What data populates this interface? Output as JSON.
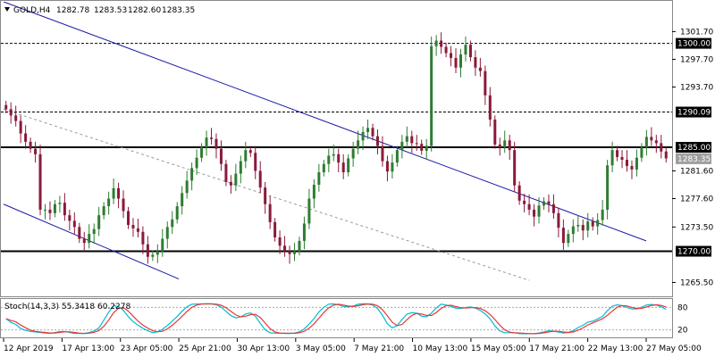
{
  "header": {
    "menu_icon": "triangle-down-icon",
    "symbol": "GOLD,H4",
    "ohlc": [
      "1282.78",
      "1283.53",
      "1282.60",
      "1283.35"
    ]
  },
  "oscillator": {
    "label": "Stoch(14,3,3) 55.3418 60.2278",
    "levels": [
      80,
      20
    ],
    "level_labels": [
      "80",
      "20"
    ],
    "main_color": "#00bcd4",
    "signal_color": "#e53935"
  },
  "colors": {
    "bull_candle": "#2e7d32",
    "bear_candle": "#8b1a3a",
    "trendline": "#1a1aa8",
    "price_tag_bg": "#000000",
    "price_tag_text": "#ffffff"
  },
  "chart_data": {
    "type": "candlestick",
    "y_axis_ticks": [
      1301.7,
      1297.7,
      1293.7,
      1281.6,
      1277.6,
      1273.5,
      1265.5
    ],
    "y_axis_labels": [
      "1301.70",
      "1297.70",
      "1293.70",
      "1281.60",
      "1277.60",
      "1273.50",
      "1265.50"
    ],
    "ylim": [
      1263.5,
      1306.0
    ],
    "x_axis_labels": [
      "12 Apr 2019",
      "17 Apr 13:00",
      "23 Apr 05:00",
      "25 Apr 21:00",
      "30 Apr 13:00",
      "3 May 05:00",
      "7 May 21:00",
      "10 May 13:00",
      "15 May 05:00",
      "17 May 21:00",
      "22 May 13:00",
      "27 May 05:00"
    ],
    "horizontal_levels": [
      {
        "value": 1300.0,
        "label": "1300.00",
        "style": "dashed"
      },
      {
        "value": 1290.09,
        "label": "1290.09",
        "style": "dashed"
      },
      {
        "value": 1285.0,
        "label": "1285.00",
        "style": "solid"
      },
      {
        "value": 1270.0,
        "label": "1270.00",
        "style": "solid"
      }
    ],
    "current_price": {
      "value": 1283.35,
      "label": "1283.35"
    },
    "trendlines": [
      {
        "from": [
          "12 Apr 2019",
          1306.0
        ],
        "to": [
          "27 May 05:00",
          1271.5
        ],
        "style": "solid"
      },
      {
        "from": [
          "12 Apr 2019",
          1276.8
        ],
        "to": [
          "25 Apr 21:00",
          1266.0
        ],
        "style": "solid"
      },
      {
        "from": [
          "12 Apr 2019",
          1290.5
        ],
        "to": [
          "17 May 21:00",
          1265.8
        ],
        "style": "dashed"
      }
    ],
    "close_path": [
      1290.5,
      1289.6,
      1288.8,
      1287.0,
      1285.8,
      1284.8,
      1284.0,
      1276.0,
      1276.0,
      1275.5,
      1276.8,
      1277.0,
      1275.2,
      1274.4,
      1273.5,
      1271.8,
      1271.2,
      1272.5,
      1273.2,
      1275.2,
      1276.5,
      1277.6,
      1279.1,
      1277.6,
      1275.8,
      1273.8,
      1273.3,
      1272.8,
      1271.0,
      1269.2,
      1269.5,
      1270.0,
      1271.8,
      1273.5,
      1274.6,
      1276.5,
      1278.4,
      1280.2,
      1282.0,
      1283.5,
      1285.0,
      1286.4,
      1286.2,
      1284.8,
      1282.6,
      1280.0,
      1279.5,
      1281.2,
      1283.0,
      1284.6,
      1284.2,
      1281.6,
      1279.2,
      1276.8,
      1274.2,
      1272.0,
      1270.8,
      1270.0,
      1269.6,
      1270.0,
      1271.5,
      1274.0,
      1277.6,
      1279.6,
      1281.4,
      1282.6,
      1283.8,
      1284.0,
      1282.8,
      1281.4,
      1283.4,
      1284.8,
      1286.0,
      1287.2,
      1287.8,
      1286.6,
      1285.2,
      1283.0,
      1281.5,
      1282.8,
      1284.6,
      1285.8,
      1286.6,
      1285.6,
      1285.5,
      1284.5,
      1285.2,
      1299.6,
      1300.4,
      1299.5,
      1298.6,
      1297.9,
      1296.5,
      1298.4,
      1299.8,
      1298.0,
      1296.5,
      1296.0,
      1292.5,
      1289.0,
      1285.4,
      1285.0,
      1286.0,
      1284.6,
      1279.5,
      1277.3,
      1276.8,
      1276.0,
      1275.0,
      1276.6,
      1277.2,
      1276.8,
      1275.5,
      1273.4,
      1271.2,
      1272.5,
      1273.6,
      1273.8,
      1273.0,
      1274.3,
      1273.6,
      1274.5,
      1276.0,
      1282.4,
      1284.6,
      1283.6,
      1283.2,
      1282.3,
      1281.8,
      1283.5,
      1285.0,
      1286.5,
      1286.0,
      1285.6,
      1284.4,
      1283.4
    ]
  }
}
